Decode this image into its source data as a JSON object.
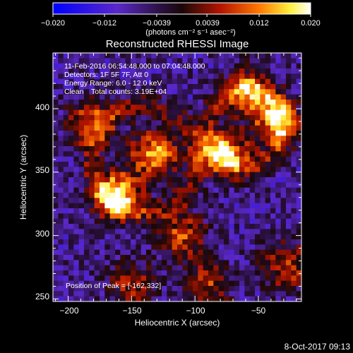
{
  "colorbar": {
    "ticks": [
      "−0.020",
      "−0.012",
      "−0.0039",
      "0.0039",
      "0.012",
      "0.020"
    ],
    "tick_values": [
      -0.02,
      -0.012,
      -0.0039,
      0.0039,
      0.012,
      0.02
    ],
    "range": [
      -0.02,
      0.02
    ],
    "units_label": "(photons cm⁻² s⁻¹ asec⁻²)"
  },
  "title": "Reconstructed RHESSI Image",
  "annotations": {
    "time_range": "11-Feb-2016 06:54:48.000 to 07:04:48.000",
    "detectors": "Detectors: 1F 5F 7F, Att 0",
    "energy": "Energy Range: 6.0 - 12.0 keV",
    "method": "Clean",
    "counts": "Total counts: 3.19E+04",
    "peak": "Position of Peak = [-162,332]"
  },
  "footer": {
    "date": "8-Oct-2017 09:13"
  },
  "colors": {
    "background": "#000000",
    "colormap": [
      "#0000ff",
      "#5a28c8",
      "#2a1040",
      "#1a0808",
      "#b41400",
      "#ff7800",
      "#fff03c",
      "#ffffff"
    ]
  },
  "chart_data": {
    "type": "heatmap",
    "title": "Reconstructed RHESSI Image",
    "xlabel": "Heliocentric X (arcsec)",
    "ylabel": "Heliocentric Y (arcsec)",
    "xlim": [
      -212,
      -16
    ],
    "ylim": [
      248,
      444
    ],
    "x_ticks": [
      -200,
      -150,
      -100,
      -50
    ],
    "y_ticks": [
      250,
      300,
      350,
      400
    ],
    "x_tick_labels": [
      "−200",
      "−150",
      "−100",
      "−50"
    ],
    "y_tick_labels": [
      "250",
      "300",
      "350",
      "400"
    ],
    "value_range": [
      -0.02,
      0.02
    ],
    "peak": [
      -162,
      332
    ],
    "grid": false,
    "bright_sources": [
      {
        "x": -162,
        "y": 332,
        "relative_intensity": 1.0
      },
      {
        "x": -132,
        "y": 364,
        "relative_intensity": 0.85
      },
      {
        "x": -76,
        "y": 364,
        "relative_intensity": 0.85
      },
      {
        "x": -36,
        "y": 390,
        "relative_intensity": 0.8
      },
      {
        "x": -58,
        "y": 414,
        "relative_intensity": 0.65
      },
      {
        "x": -182,
        "y": 390,
        "relative_intensity": 0.6
      },
      {
        "x": -110,
        "y": 300,
        "relative_intensity": 0.6
      },
      {
        "x": -28,
        "y": 276,
        "relative_intensity": 0.6
      },
      {
        "x": -90,
        "y": 262,
        "relative_intensity": 0.5
      },
      {
        "x": -150,
        "y": 262,
        "relative_intensity": 0.45
      }
    ]
  }
}
